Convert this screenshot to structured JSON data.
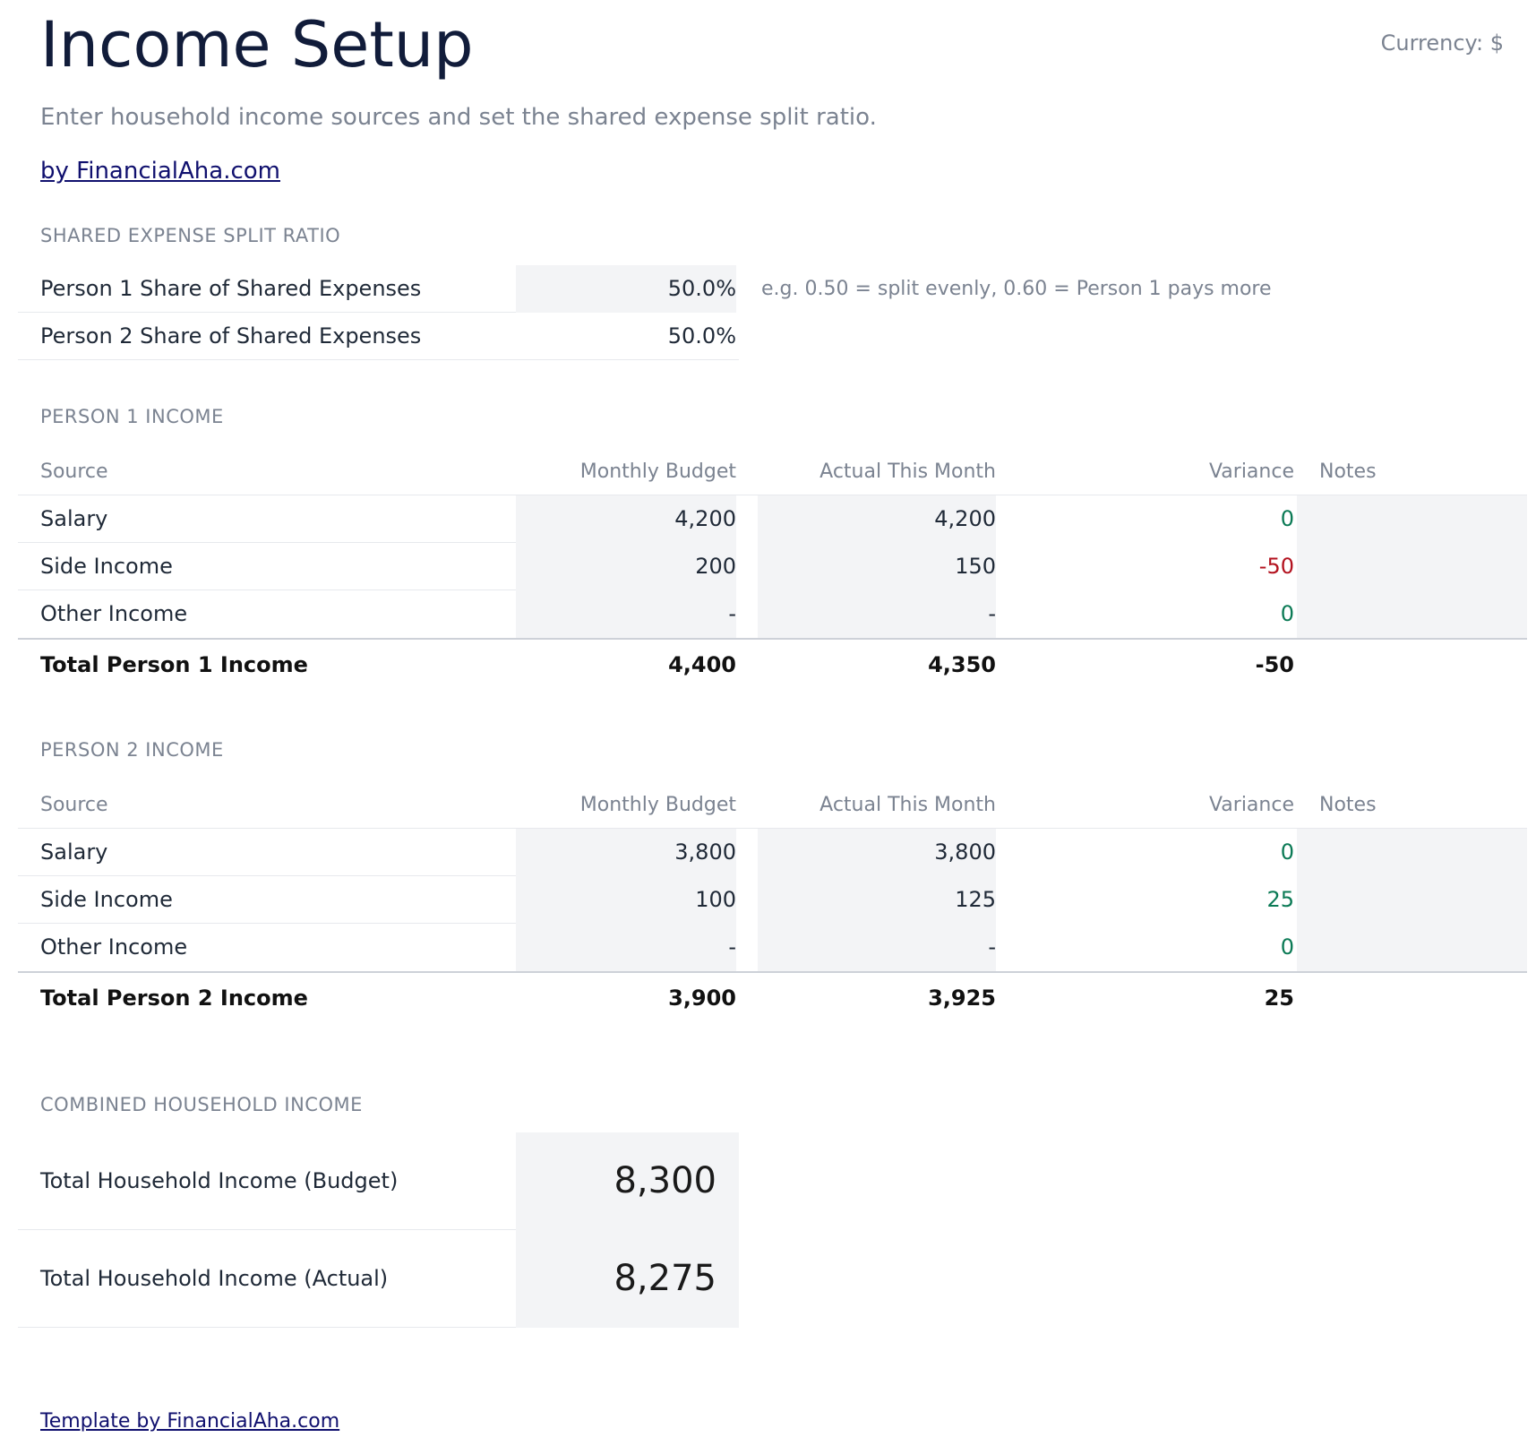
{
  "header": {
    "title": "Income Setup",
    "currency": "Currency: $",
    "subtitle": "Enter household income sources and set the shared expense split ratio.",
    "by_link": "by FinancialAha.com"
  },
  "split": {
    "label": "SHARED EXPENSE SPLIT RATIO",
    "person1_label": "Person 1 Share of Shared Expenses",
    "person1_value": "50.0%",
    "person2_label": "Person 2 Share of Shared Expenses",
    "person2_value": "50.0%",
    "hint": "e.g. 0.50 = split evenly, 0.60 = Person 1 pays more"
  },
  "columns": {
    "source": "Source",
    "budget": "Monthly Budget",
    "actual": "Actual This Month",
    "variance": "Variance",
    "notes": "Notes"
  },
  "person1": {
    "label": "PERSON 1 INCOME",
    "rows": [
      {
        "source": "Salary",
        "budget": "4,200",
        "actual": "4,200",
        "variance": "0",
        "notes": ""
      },
      {
        "source": "Side Income",
        "budget": "200",
        "actual": "150",
        "variance": "-50",
        "notes": ""
      },
      {
        "source": "Other Income",
        "budget": "-",
        "actual": "-",
        "variance": "0",
        "notes": ""
      }
    ],
    "total": {
      "source": "Total Person 1 Income",
      "budget": "4,400",
      "actual": "4,350",
      "variance": "-50"
    }
  },
  "person2": {
    "label": "PERSON 2 INCOME",
    "rows": [
      {
        "source": "Salary",
        "budget": "3,800",
        "actual": "3,800",
        "variance": "0",
        "notes": ""
      },
      {
        "source": "Side Income",
        "budget": "100",
        "actual": "125",
        "variance": "25",
        "notes": ""
      },
      {
        "source": "Other Income",
        "budget": "-",
        "actual": "-",
        "variance": "0",
        "notes": ""
      }
    ],
    "total": {
      "source": "Total Person 2 Income",
      "budget": "3,900",
      "actual": "3,925",
      "variance": "25"
    }
  },
  "combined": {
    "label": "COMBINED HOUSEHOLD INCOME",
    "budget_label": "Total Household Income (Budget)",
    "budget_value": "8,300",
    "actual_label": "Total Household Income (Actual)",
    "actual_value": "8,275"
  },
  "footer": {
    "link": "Template by FinancialAha.com"
  },
  "colors": {
    "positive": "#0b7a55",
    "negative": "#b3121f",
    "input_fill": "#f3f4f6",
    "title": "#111c3a",
    "link": "#10106e"
  }
}
